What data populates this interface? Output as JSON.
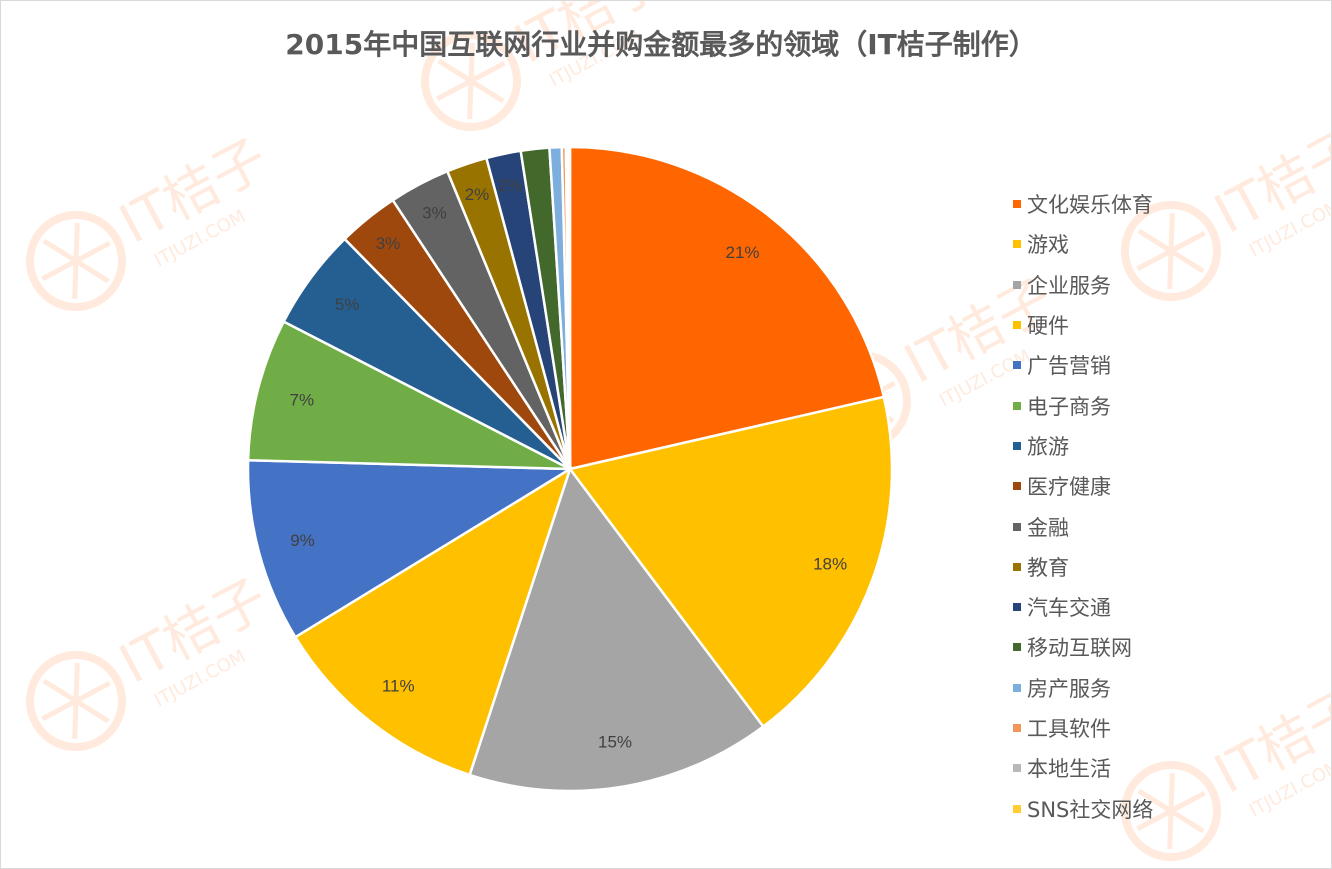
{
  "chart_data": {
    "type": "pie",
    "title": "2015年中国互联网行业并购金额最多的领域（IT桔子制作）",
    "watermark": {
      "brand": "IT桔子",
      "url": "ITJUZI.COM"
    },
    "legend_position": "right",
    "start_angle": "12 o'clock, clockwise",
    "slices": [
      {
        "name": "文化娱乐体育",
        "value": 21,
        "label": "21%",
        "color": "#FF6600"
      },
      {
        "name": "游戏",
        "value": 18,
        "label": "18%",
        "color": "#FFC000"
      },
      {
        "name": "企业服务",
        "value": 15,
        "label": "15%",
        "color": "#A5A5A5"
      },
      {
        "name": "硬件",
        "value": 11,
        "label": "11%",
        "color": "#FFC000"
      },
      {
        "name": "广告营销",
        "value": 9,
        "label": "9%",
        "color": "#4472C4"
      },
      {
        "name": "电子商务",
        "value": 7,
        "label": "7%",
        "color": "#70AD47"
      },
      {
        "name": "旅游",
        "value": 5,
        "label": "5%",
        "color": "#255E91"
      },
      {
        "name": "医疗健康",
        "value": 3,
        "label": "3%",
        "color": "#9E480E"
      },
      {
        "name": "金融",
        "value": 3,
        "label": "3%",
        "color": "#636363"
      },
      {
        "name": "教育",
        "value": 2,
        "label": "2%",
        "color": "#997300"
      },
      {
        "name": "汽车交通",
        "value": 1.7,
        "label": "2%",
        "color": "#264478"
      },
      {
        "name": "移动互联网",
        "value": 1.4,
        "label": "",
        "color": "#43682B"
      },
      {
        "name": "房产服务",
        "value": 0.6,
        "label": "",
        "color": "#7CAFDD"
      },
      {
        "name": "工具软件",
        "value": 0.2,
        "label": "",
        "color": "#F1975A"
      },
      {
        "name": "本地生活",
        "value": 0.1,
        "label": "",
        "color": "#B7B7B7"
      },
      {
        "name": "SNS社交网络",
        "value": 0.1,
        "label": "",
        "color": "#FFCD33"
      }
    ]
  }
}
